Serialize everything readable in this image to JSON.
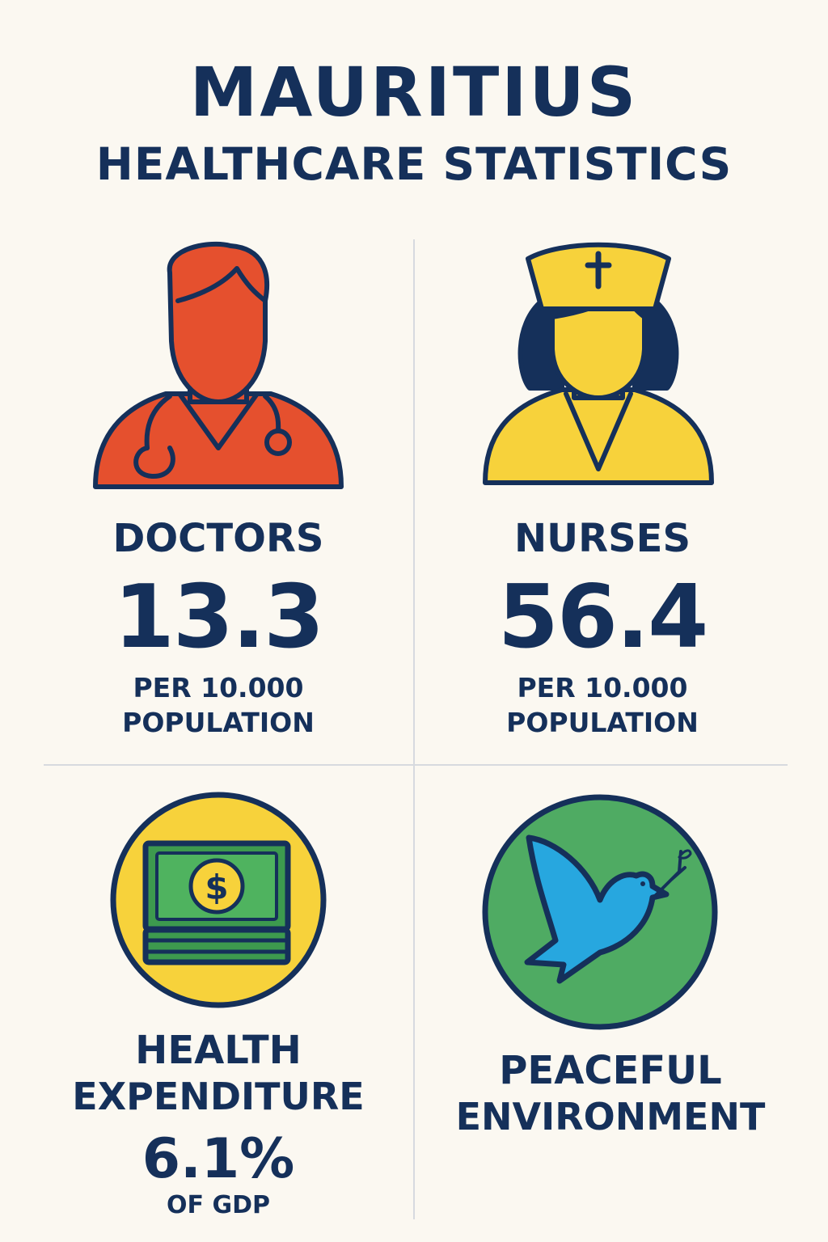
{
  "header": {
    "title_line1": "MAURITIUS",
    "title_line2": "HEALTHCARE STATISTICS"
  },
  "colors": {
    "navy": "#15305a",
    "doctor_red": "#e5502e",
    "nurse_yellow": "#f7d23b",
    "money_green": "#3d9a4e",
    "peace_green": "#4fab63",
    "dove_blue": "#27a7df",
    "background": "#fbf8f1"
  },
  "doctors": {
    "icon": "doctor-icon",
    "label": "DOCTORS",
    "value": "13.3",
    "unit_line1": "PER 10.000",
    "unit_line2": "POPULATION"
  },
  "nurses": {
    "icon": "nurse-icon",
    "label": "NURSES",
    "value": "56.4",
    "unit_line1": "PER 10.000",
    "unit_line2": "POPULATION"
  },
  "expenditure": {
    "icon": "money-icon",
    "label_line1": "HEALTH",
    "label_line2": "EXPENDITURE",
    "value": "6.1%",
    "unit": "OF GDP"
  },
  "peace": {
    "icon": "dove-icon",
    "label_line1": "PEACEFUL",
    "label_line2": "ENVIRONMENT"
  }
}
